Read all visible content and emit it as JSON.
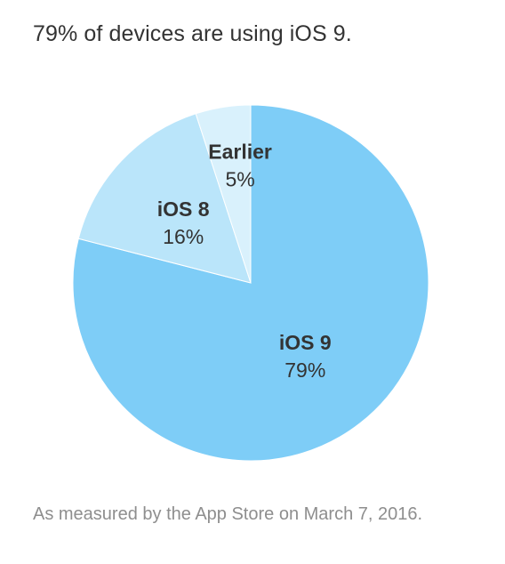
{
  "title": "79% of devices are using iOS 9.",
  "footnote": "As measured by the App Store on March 7, 2016.",
  "chart_data": {
    "type": "pie",
    "title": "79% of devices are using iOS 9.",
    "slices": [
      {
        "name": "iOS 9",
        "value": 79,
        "display": "79%",
        "color": "#7ecdf7"
      },
      {
        "name": "iOS 8",
        "value": 16,
        "display": "16%",
        "color": "#bae5fa"
      },
      {
        "name": "Earlier",
        "value": 5,
        "display": "5%",
        "color": "#d9f1fc"
      }
    ],
    "labels_on_slices": true,
    "legend": "none"
  }
}
